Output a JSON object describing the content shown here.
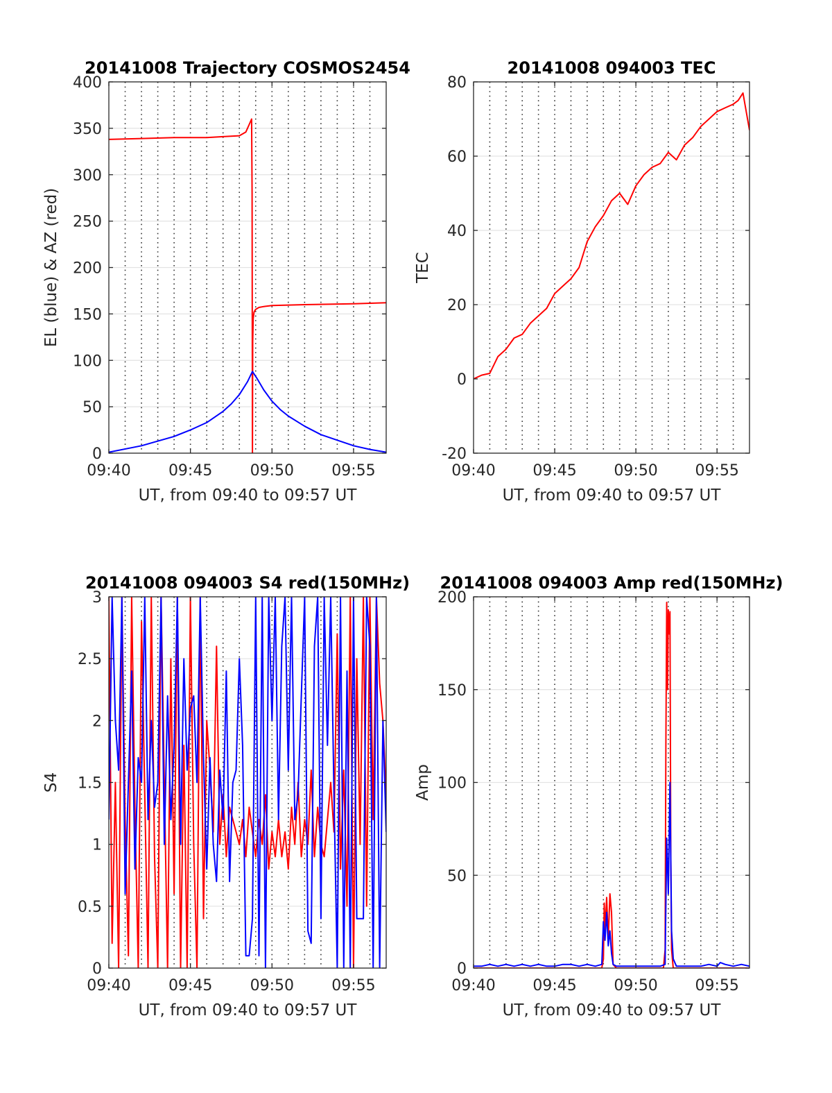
{
  "chart_data": [
    {
      "type": "line",
      "title": "20141008 Trajectory COSMOS2454",
      "xlabel": "UT, from 09:40 to 09:57 UT",
      "ylabel": "EL (blue) & AZ (red)",
      "xlim": [
        0,
        17
      ],
      "ylim": [
        0,
        400
      ],
      "yticks": [
        0,
        50,
        100,
        150,
        200,
        250,
        300,
        350,
        400
      ],
      "xticks": [
        {
          "v": 0,
          "label": "09:40"
        },
        {
          "v": 5,
          "label": "09:45"
        },
        {
          "v": 10,
          "label": "09:50"
        },
        {
          "v": 15,
          "label": "09:55"
        }
      ],
      "grid": "horizontal solid, vertical dotted each minute",
      "series": [
        {
          "color": "#ff0000",
          "x": [
            0,
            2,
            4,
            6,
            7,
            8,
            8.4,
            8.6,
            8.75,
            8.78,
            8.8,
            8.82,
            8.85,
            8.9,
            9.0,
            9.2,
            9.5,
            10,
            12,
            15,
            17
          ],
          "y": [
            338,
            339,
            340,
            340,
            341,
            342,
            346,
            354,
            360,
            280,
            0,
            120,
            145,
            152,
            155,
            157,
            158,
            159,
            160,
            161,
            162
          ]
        },
        {
          "color": "#0000ff",
          "x": [
            0,
            2,
            4,
            5,
            6,
            7,
            7.5,
            8,
            8.5,
            8.8,
            9.1,
            9.5,
            10,
            10.5,
            11,
            12,
            13,
            14,
            15,
            16,
            17
          ],
          "y": [
            1,
            8,
            18,
            25,
            33,
            45,
            53,
            63,
            77,
            88,
            80,
            68,
            56,
            47,
            40,
            29,
            20,
            14,
            8,
            4,
            1
          ]
        }
      ]
    },
    {
      "type": "line",
      "title": "20141008 094003 TEC",
      "xlabel": "UT, from 09:40 to 09:57 UT",
      "ylabel": "TEC",
      "xlim": [
        0,
        17
      ],
      "ylim": [
        -20,
        80
      ],
      "yticks": [
        -20,
        0,
        20,
        40,
        60,
        80
      ],
      "xticks": [
        {
          "v": 0,
          "label": "09:40"
        },
        {
          "v": 5,
          "label": "09:45"
        },
        {
          "v": 10,
          "label": "09:50"
        },
        {
          "v": 15,
          "label": "09:55"
        }
      ],
      "grid": "horizontal solid, vertical dotted each minute",
      "series": [
        {
          "color": "#ff0000",
          "x": [
            0,
            0.5,
            1.0,
            1.5,
            2.0,
            2.5,
            3.0,
            3.5,
            4.0,
            4.5,
            5.0,
            5.5,
            6.0,
            6.5,
            7.0,
            7.5,
            8.0,
            8.5,
            9.0,
            9.5,
            10.0,
            10.5,
            11.0,
            11.5,
            12.0,
            12.5,
            13.0,
            13.5,
            14.0,
            14.5,
            15.0,
            15.5,
            16.0,
            16.3,
            16.6,
            17.0
          ],
          "y": [
            0,
            1,
            1.5,
            6,
            8,
            11,
            12,
            15,
            17,
            19,
            23,
            25,
            27,
            30,
            37,
            41,
            44,
            48,
            50,
            47,
            52,
            55,
            57,
            58,
            61,
            59,
            63,
            65,
            68,
            70,
            72,
            73,
            74,
            75,
            77,
            67
          ]
        }
      ]
    },
    {
      "type": "line",
      "title": "20141008 094003 S4 red(150MHz)",
      "xlabel": "UT, from 09:40 to 09:57 UT",
      "ylabel": "S4",
      "xlim": [
        0,
        17
      ],
      "ylim": [
        0,
        3
      ],
      "yticks": [
        0,
        0.5,
        1,
        1.5,
        2,
        2.5,
        3
      ],
      "yticklabels": [
        "0",
        "0.5",
        "1",
        "1.5",
        "2",
        "2.5",
        "3"
      ],
      "xticks": [
        {
          "v": 0,
          "label": "09:40"
        },
        {
          "v": 5,
          "label": "09:45"
        },
        {
          "v": 10,
          "label": "09:50"
        },
        {
          "v": 15,
          "label": "09:55"
        }
      ],
      "grid": "horizontal solid, vertical dotted each minute",
      "series": [
        {
          "color": "#ff0000",
          "x": [
            0,
            0.2,
            0.4,
            0.6,
            0.8,
            1.0,
            1.2,
            1.4,
            1.6,
            1.8,
            2.0,
            2.2,
            2.4,
            2.6,
            2.8,
            3.0,
            3.2,
            3.4,
            3.6,
            3.8,
            4.0,
            4.2,
            4.4,
            4.6,
            4.8,
            5.0,
            5.2,
            5.4,
            5.6,
            5.8,
            6.0,
            6.2,
            6.4,
            6.6,
            6.8,
            7.0,
            7.2,
            7.4,
            7.6,
            7.8,
            8.0,
            8.2,
            8.4,
            8.6,
            8.8,
            9.0,
            9.2,
            9.4,
            9.6,
            9.8,
            10.0,
            10.2,
            10.4,
            10.6,
            10.8,
            11.0,
            11.2,
            11.4,
            11.6,
            11.8,
            12.0,
            12.2,
            12.4,
            12.6,
            12.8,
            13.0,
            13.2,
            13.4,
            13.6,
            13.8,
            14.0,
            14.2,
            14.4,
            14.6,
            14.8,
            15.0,
            15.2,
            15.4,
            15.6,
            15.8,
            16.0,
            16.2,
            16.4,
            16.6,
            16.8,
            17.0
          ],
          "y": [
            3,
            0.2,
            1.5,
            0,
            3,
            1.2,
            0.1,
            3,
            1.3,
            0,
            2.8,
            1.4,
            0,
            3,
            0.9,
            0,
            3,
            1.5,
            0,
            2.5,
            0.6,
            3,
            0,
            1.8,
            0,
            3,
            1.0,
            0,
            3,
            0.4,
            2.0,
            1.6,
            1.1,
            2.6,
            1.0,
            1.4,
            0.9,
            1.3,
            1.2,
            1.1,
            1.0,
            1.2,
            0.9,
            1.3,
            1.1,
            0.9,
            1.2,
            1.0,
            1.4,
            0.8,
            1.1,
            0.9,
            1.2,
            0.9,
            1.1,
            0.8,
            1.3,
            1.0,
            1.5,
            0.9,
            1.2,
            1.0,
            1.6,
            0.9,
            1.3,
            1.0,
            0.9,
            1.2,
            1.5,
            1.1,
            2.7,
            0.8,
            1.6,
            0.5,
            3,
            0,
            2.5,
            1.0,
            3,
            0.5,
            3,
            1.2,
            3,
            2.3,
            2.0,
            1.4
          ]
        },
        {
          "color": "#0000ff",
          "x": [
            0,
            0.2,
            0.4,
            0.6,
            0.8,
            1.0,
            1.2,
            1.4,
            1.6,
            1.8,
            2.0,
            2.2,
            2.4,
            2.6,
            2.8,
            3.0,
            3.2,
            3.4,
            3.6,
            3.8,
            4.0,
            4.2,
            4.4,
            4.6,
            4.8,
            5.0,
            5.2,
            5.4,
            5.6,
            5.8,
            6.0,
            6.2,
            6.4,
            6.6,
            6.8,
            7.0,
            7.2,
            7.4,
            7.6,
            7.8,
            8.0,
            8.2,
            8.4,
            8.6,
            8.8,
            9.0,
            9.2,
            9.4,
            9.6,
            9.8,
            10.0,
            10.2,
            10.4,
            10.6,
            10.8,
            11.0,
            11.2,
            11.4,
            11.6,
            11.8,
            12.0,
            12.2,
            12.4,
            12.6,
            12.8,
            13.0,
            13.2,
            13.4,
            13.6,
            13.8,
            14.0,
            14.2,
            14.4,
            14.6,
            14.8,
            15.0,
            15.2,
            15.4,
            15.6,
            15.8,
            16.0,
            16.2,
            16.4,
            16.6,
            16.8,
            17.0
          ],
          "y": [
            1.2,
            3,
            2.0,
            1.6,
            3,
            0.6,
            1.5,
            2.4,
            0.8,
            1.7,
            1.5,
            3,
            1.2,
            2.0,
            1.3,
            1.5,
            3,
            1.0,
            2.2,
            1.2,
            1.8,
            3,
            1.0,
            2.5,
            1.6,
            2.1,
            2.2,
            1.5,
            3,
            1.7,
            0.8,
            1.7,
            1.0,
            0.7,
            1.6,
            1.2,
            2.4,
            0.7,
            1.5,
            1.6,
            2.5,
            1.8,
            0.1,
            0.1,
            0.4,
            3,
            0.1,
            3,
            0,
            3,
            2.0,
            3,
            1.2,
            2.6,
            3,
            1.6,
            3,
            1.2,
            1.4,
            2.2,
            3,
            0.3,
            0.2,
            2.6,
            3,
            0.4,
            3,
            1.8,
            3,
            1.4,
            0,
            3,
            0,
            2.4,
            0,
            3,
            0.4,
            0.4,
            0.4,
            3,
            2.6,
            0,
            3,
            0,
            2.0,
            1.1
          ]
        }
      ]
    },
    {
      "type": "line",
      "title": "20141008 094003 Amp red(150MHz)",
      "xlabel": "UT, from 09:40 to 09:57 UT",
      "ylabel": "Amp",
      "xlim": [
        0,
        17
      ],
      "ylim": [
        0,
        200
      ],
      "yticks": [
        0,
        50,
        100,
        150,
        200
      ],
      "xticks": [
        {
          "v": 0,
          "label": "09:40"
        },
        {
          "v": 5,
          "label": "09:45"
        },
        {
          "v": 10,
          "label": "09:50"
        },
        {
          "v": 15,
          "label": "09:55"
        }
      ],
      "grid": "horizontal solid, vertical dotted each minute",
      "series": [
        {
          "color": "#ff0000",
          "x": [
            0,
            1,
            2,
            3,
            4,
            5,
            6,
            7,
            7.9,
            8.0,
            8.05,
            8.1,
            8.2,
            8.3,
            8.4,
            8.5,
            8.6,
            8.8,
            9,
            10,
            11,
            11.7,
            11.8,
            11.85,
            11.9,
            11.95,
            12.0,
            12.05,
            12.1,
            12.15,
            12.2,
            12.3,
            12.5,
            13,
            14,
            15,
            16,
            17
          ],
          "y": [
            0,
            0,
            0,
            0,
            0,
            0,
            0,
            0,
            0,
            5,
            35,
            20,
            38,
            15,
            40,
            30,
            2,
            0,
            0,
            0,
            0,
            0,
            10,
            120,
            197,
            150,
            193,
            180,
            192,
            60,
            10,
            0,
            0,
            0,
            0,
            0,
            0,
            0
          ]
        },
        {
          "color": "#0000ff",
          "x": [
            0,
            0.5,
            1,
            1.5,
            2,
            2.5,
            3,
            3.5,
            4,
            4.5,
            5,
            5.5,
            6,
            6.5,
            7,
            7.5,
            7.9,
            8.0,
            8.1,
            8.2,
            8.3,
            8.4,
            8.5,
            8.6,
            8.8,
            9,
            9.5,
            10,
            10.5,
            11,
            11.5,
            11.8,
            11.9,
            12.0,
            12.1,
            12.2,
            12.3,
            12.5,
            13,
            13.5,
            14,
            14.5,
            15,
            15.2,
            15.5,
            16,
            16.5,
            17
          ],
          "y": [
            1,
            1,
            2,
            1,
            2,
            1,
            2,
            1,
            2,
            1,
            1,
            2,
            2,
            1,
            2,
            1,
            2,
            25,
            15,
            30,
            12,
            20,
            8,
            2,
            1,
            1,
            1,
            1,
            1,
            1,
            1,
            2,
            70,
            40,
            100,
            20,
            5,
            1,
            1,
            1,
            1,
            2,
            1,
            3,
            2,
            1,
            2,
            1
          ]
        }
      ]
    }
  ]
}
